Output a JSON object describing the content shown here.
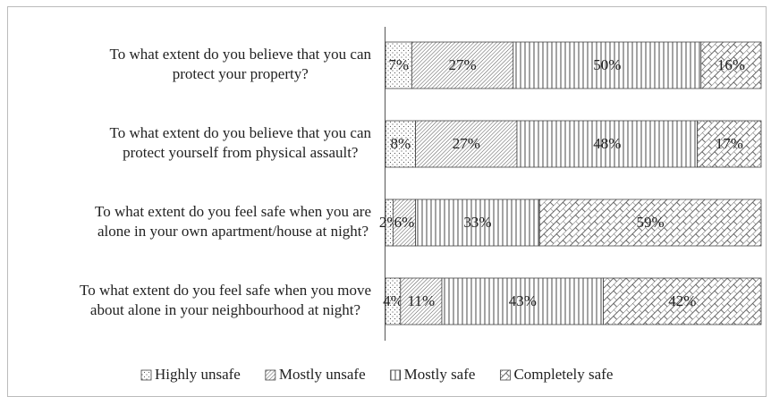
{
  "chart_data": {
    "type": "stacked_barh",
    "categories": [
      [
        "To what extent do you believe that you can",
        "protect your property?"
      ],
      [
        "To what extent do you believe that you can",
        "protect yourself from physical assault?"
      ],
      [
        "To what extent do you feel safe when you are",
        "alone in your own apartment/house at night?"
      ],
      [
        "To what extent do you feel safe when you move",
        "about alone in your neighbourhood at night?"
      ]
    ],
    "series": [
      {
        "name": "Highly unsafe",
        "pattern": "dots",
        "values": [
          7,
          8,
          2,
          4
        ],
        "value_labels": [
          "7%",
          "8%",
          "2%",
          "4%"
        ]
      },
      {
        "name": "Mostly unsafe",
        "pattern": "diagonal",
        "values": [
          27,
          27,
          6,
          11
        ],
        "value_labels": [
          "27%",
          "27%",
          "6%",
          "11%"
        ]
      },
      {
        "name": "Mostly safe",
        "pattern": "vertical",
        "values": [
          50,
          48,
          33,
          43
        ],
        "value_labels": [
          "50%",
          "48%",
          "33%",
          "43%"
        ]
      },
      {
        "name": "Completely safe",
        "pattern": "lattice",
        "values": [
          16,
          17,
          59,
          42
        ],
        "value_labels": [
          "16%",
          "17%",
          "59%",
          "42%"
        ]
      }
    ],
    "xlim": [
      0,
      100
    ],
    "legend": "bottom"
  }
}
